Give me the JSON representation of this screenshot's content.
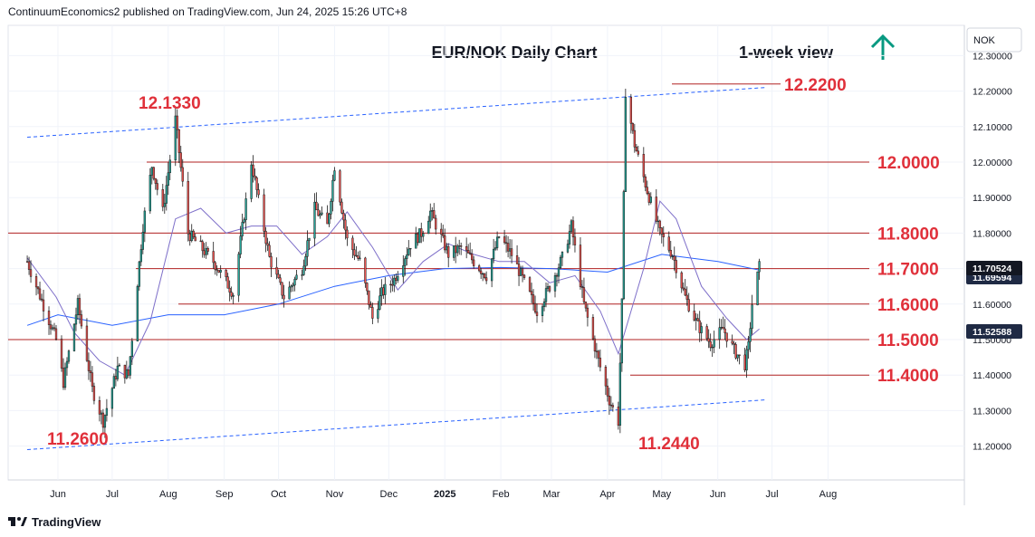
{
  "header": {
    "attribution": "ContinuumEconomics2 published on TradingView.com, Jun 24, 2025 15:26 UTC+8"
  },
  "footer": {
    "brand": "TradingView"
  },
  "icons": {
    "up_arrow": "arrow-up-icon",
    "brand_logo": "tradingview-logo-icon"
  },
  "colors": {
    "bull": "#26a69a",
    "bear": "#ef5350",
    "candle": "#1b1b1b",
    "level": "#b22222",
    "label": "#e0303a",
    "trend": "#2962ff",
    "ma_short": "#7e6fc9",
    "ma_long": "#2962ff",
    "arrow": "#089981",
    "price_tag": "#131722",
    "price_tag_2": "#1f2a44"
  },
  "chart_data": {
    "type": "candlestick",
    "title": "EUR/NOK Daily Chart",
    "subtitle": "1-week view",
    "currency": "NOK",
    "y_ticks": [
      "12.30000",
      "12.20000",
      "12.10000",
      "12.00000",
      "11.90000",
      "11.80000",
      "11.70000",
      "11.60000",
      "11.50000",
      "11.40000",
      "11.30000",
      "11.20000"
    ],
    "y_range": [
      11.1,
      12.4
    ],
    "x_ticks": [
      "Jun",
      "Jul",
      "Aug",
      "Sep",
      "Oct",
      "Nov",
      "Dec",
      "2025",
      "Feb",
      "Mar",
      "Apr",
      "May",
      "Jun",
      "Jul",
      "Aug"
    ],
    "levels": [
      {
        "value": 12.22,
        "label": "12.2200"
      },
      {
        "value": 12.0,
        "label": "12.0000"
      },
      {
        "value": 11.8,
        "label": "11.8000"
      },
      {
        "value": 11.7,
        "label": "11.7000"
      },
      {
        "value": 11.6,
        "label": "11.6000"
      },
      {
        "value": 11.5,
        "label": "11.5000"
      },
      {
        "value": 11.4,
        "label": "11.4000"
      }
    ],
    "swing_labels": [
      {
        "label": "12.1330",
        "value": 12.133
      },
      {
        "label": "11.2600",
        "value": 11.26
      },
      {
        "label": "11.2440",
        "value": 11.244
      }
    ],
    "price_tags": [
      {
        "label": "11.70524",
        "value": 11.70524
      },
      {
        "label": "11.69594",
        "value": 11.69594
      },
      {
        "label": "11.52588",
        "value": 11.52588
      }
    ],
    "channel": {
      "upper": [
        [
          "2024-05-15",
          12.07
        ],
        [
          "2025-06-27",
          12.21
        ]
      ],
      "lower": [
        [
          "2024-05-15",
          11.19
        ],
        [
          "2025-06-27",
          11.33
        ]
      ]
    },
    "swing_points": [
      [
        "2024-05-15",
        11.72
      ],
      [
        "2024-05-31",
        11.5
      ],
      [
        "2024-06-04",
        11.38
      ],
      [
        "2024-06-12",
        11.6
      ],
      [
        "2024-06-20",
        11.36
      ],
      [
        "2024-06-26",
        11.27
      ],
      [
        "2024-07-04",
        11.42
      ],
      [
        "2024-07-10",
        11.4
      ],
      [
        "2024-07-18",
        11.82
      ],
      [
        "2024-07-23",
        11.99
      ],
      [
        "2024-07-29",
        11.86
      ],
      [
        "2024-08-05",
        12.12
      ],
      [
        "2024-08-12",
        11.8
      ],
      [
        "2024-08-26",
        11.72
      ],
      [
        "2024-09-06",
        11.63
      ],
      [
        "2024-09-16",
        12.0
      ],
      [
        "2024-09-26",
        11.73
      ],
      [
        "2024-10-04",
        11.62
      ],
      [
        "2024-10-14",
        11.7
      ],
      [
        "2024-10-21",
        11.87
      ],
      [
        "2024-10-28",
        11.82
      ],
      [
        "2024-11-01",
        11.99
      ],
      [
        "2024-11-08",
        11.78
      ],
      [
        "2024-11-15",
        11.72
      ],
      [
        "2024-11-22",
        11.56
      ],
      [
        "2024-11-27",
        11.63
      ],
      [
        "2024-12-04",
        11.67
      ],
      [
        "2024-12-13",
        11.77
      ],
      [
        "2024-12-19",
        11.8
      ],
      [
        "2024-12-24",
        11.86
      ],
      [
        "2025-01-03",
        11.74
      ],
      [
        "2025-01-10",
        11.76
      ],
      [
        "2025-01-17",
        11.72
      ],
      [
        "2025-01-24",
        11.68
      ],
      [
        "2025-01-31",
        11.79
      ],
      [
        "2025-02-07",
        11.74
      ],
      [
        "2025-02-14",
        11.66
      ],
      [
        "2025-02-21",
        11.58
      ],
      [
        "2025-02-28",
        11.65
      ],
      [
        "2025-03-07",
        11.73
      ],
      [
        "2025-03-12",
        11.82
      ],
      [
        "2025-03-19",
        11.6
      ],
      [
        "2025-03-26",
        11.46
      ],
      [
        "2025-04-02",
        11.33
      ],
      [
        "2025-04-07",
        11.27
      ],
      [
        "2025-04-09",
        11.6
      ],
      [
        "2025-04-11",
        12.2
      ],
      [
        "2025-04-16",
        12.05
      ],
      [
        "2025-04-23",
        11.92
      ],
      [
        "2025-04-30",
        11.8
      ],
      [
        "2025-05-07",
        11.74
      ],
      [
        "2025-05-14",
        11.62
      ],
      [
        "2025-05-21",
        11.54
      ],
      [
        "2025-05-28",
        11.49
      ],
      [
        "2025-06-04",
        11.53
      ],
      [
        "2025-06-10",
        11.47
      ],
      [
        "2025-06-16",
        11.43
      ],
      [
        "2025-06-18",
        11.48
      ],
      [
        "2025-06-20",
        11.6
      ],
      [
        "2025-06-24",
        11.705
      ]
    ],
    "ma_short_points": [
      [
        "2024-05-15",
        11.73
      ],
      [
        "2024-05-31",
        11.62
      ],
      [
        "2024-06-10",
        11.52
      ],
      [
        "2024-06-24",
        11.44
      ],
      [
        "2024-07-08",
        11.4
      ],
      [
        "2024-07-22",
        11.55
      ],
      [
        "2024-08-05",
        11.84
      ],
      [
        "2024-08-19",
        11.87
      ],
      [
        "2024-09-02",
        11.8
      ],
      [
        "2024-09-16",
        11.82
      ],
      [
        "2024-09-30",
        11.82
      ],
      [
        "2024-10-14",
        11.74
      ],
      [
        "2024-10-28",
        11.79
      ],
      [
        "2024-11-08",
        11.86
      ],
      [
        "2024-11-22",
        11.76
      ],
      [
        "2024-12-06",
        11.64
      ],
      [
        "2024-12-20",
        11.72
      ],
      [
        "2025-01-03",
        11.77
      ],
      [
        "2025-01-17",
        11.74
      ],
      [
        "2025-01-31",
        11.72
      ],
      [
        "2025-02-14",
        11.72
      ],
      [
        "2025-02-28",
        11.66
      ],
      [
        "2025-03-14",
        11.68
      ],
      [
        "2025-03-28",
        11.58
      ],
      [
        "2025-04-07",
        11.46
      ],
      [
        "2025-04-21",
        11.7
      ],
      [
        "2025-04-30",
        11.89
      ],
      [
        "2025-05-09",
        11.84
      ],
      [
        "2025-05-23",
        11.65
      ],
      [
        "2025-06-06",
        11.56
      ],
      [
        "2025-06-17",
        11.5
      ],
      [
        "2025-06-24",
        11.53
      ]
    ],
    "ma_long_points": [
      [
        "2024-05-15",
        11.54
      ],
      [
        "2024-06-01",
        11.57
      ],
      [
        "2024-07-01",
        11.54
      ],
      [
        "2024-08-01",
        11.57
      ],
      [
        "2024-09-01",
        11.57
      ],
      [
        "2024-10-01",
        11.6
      ],
      [
        "2024-11-01",
        11.65
      ],
      [
        "2024-12-01",
        11.68
      ],
      [
        "2025-01-01",
        11.7
      ],
      [
        "2025-02-01",
        11.703
      ],
      [
        "2025-03-01",
        11.7
      ],
      [
        "2025-04-01",
        11.69
      ],
      [
        "2025-05-01",
        11.74
      ],
      [
        "2025-06-01",
        11.72
      ],
      [
        "2025-06-24",
        11.696
      ]
    ]
  }
}
